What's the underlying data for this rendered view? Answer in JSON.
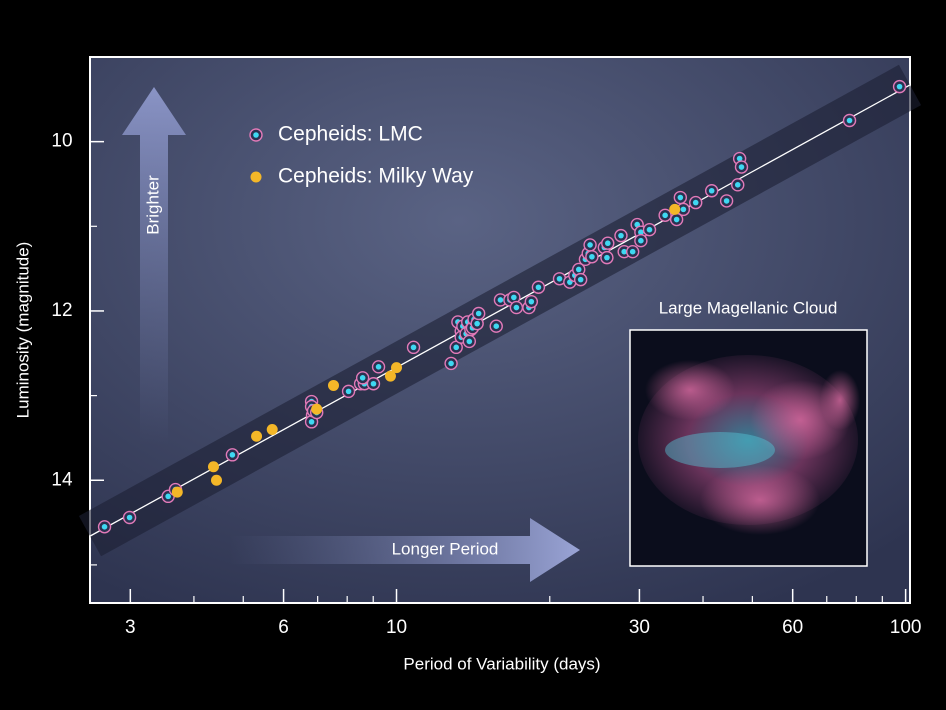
{
  "chart_data": {
    "type": "scatter",
    "x_label": "Period of Variability (days)",
    "y_label": "Luminosity (magnitude)",
    "xscale": "log",
    "y_inverted": true,
    "xlim": [
      2.5,
      102
    ],
    "ylim": [
      9,
      15.45
    ],
    "xticks": [
      3,
      6,
      10,
      30,
      60,
      100
    ],
    "xminorticks": [
      4,
      5,
      7,
      8,
      9,
      20,
      40,
      50,
      70,
      80,
      90
    ],
    "yticks": [
      10,
      12,
      14
    ],
    "yminorticks": [
      11,
      13,
      15
    ],
    "legend_position": "upper left",
    "annotations": [
      "Brighter",
      "Longer Period"
    ],
    "inset_title": "Large Magellanic Cloud",
    "trend": {
      "color": "#ffffff",
      "x": [
        2.5,
        102
      ],
      "values": [
        14.66,
        9.33
      ]
    },
    "series": [
      {
        "name": "Cepheids: LMC",
        "color": "#3fd8f2",
        "ring_color": "#e27ab8",
        "x": [
          2.67,
          2.99,
          3.56,
          3.68,
          4.76,
          6.81,
          6.81,
          6.84,
          6.81,
          6.87,
          6.97,
          8.05,
          8.5,
          8.65,
          8.58,
          9.01,
          9.22,
          10.8,
          12.8,
          13.1,
          13.2,
          13.4,
          13.4,
          13.5,
          13.7,
          13.8,
          14.0,
          14.1,
          14.2,
          14.4,
          13.9,
          14.5,
          15.7,
          16.0,
          16.7,
          17.0,
          17.2,
          18.2,
          18.4,
          19.0,
          20.9,
          21.9,
          22.4,
          22.8,
          23.0,
          23.5,
          23.8,
          24.0,
          24.2,
          25.6,
          25.9,
          26.0,
          27.6,
          28.0,
          29.1,
          29.7,
          30.2,
          30.2,
          31.4,
          33.7,
          35.5,
          36.1,
          36.6,
          38.7,
          41.6,
          44.5,
          46.8,
          47.2,
          47.6,
          77.6,
          97.3
        ],
        "values": [
          14.55,
          14.44,
          14.19,
          14.11,
          13.7,
          13.07,
          13.13,
          13.23,
          13.31,
          13.18,
          13.2,
          12.95,
          12.86,
          12.86,
          12.79,
          12.86,
          12.66,
          12.43,
          12.62,
          12.43,
          12.13,
          12.24,
          12.31,
          12.18,
          12.27,
          12.13,
          12.22,
          12.2,
          12.1,
          12.15,
          12.36,
          12.03,
          12.18,
          11.87,
          11.87,
          11.84,
          11.96,
          11.96,
          11.89,
          11.72,
          11.62,
          11.66,
          11.58,
          11.51,
          11.63,
          11.39,
          11.32,
          11.22,
          11.36,
          11.25,
          11.37,
          11.2,
          11.11,
          11.3,
          11.3,
          10.98,
          11.07,
          11.17,
          11.04,
          10.87,
          10.92,
          10.66,
          10.8,
          10.72,
          10.58,
          10.7,
          10.51,
          10.2,
          10.3,
          9.75,
          9.35
        ]
      },
      {
        "name": "Cepheids: Milky Way",
        "color": "#f4b728",
        "x": [
          3.71,
          4.37,
          4.43,
          5.31,
          5.7,
          6.97,
          7.52,
          9.73,
          10.0,
          35.2
        ],
        "values": [
          14.14,
          13.84,
          14.0,
          13.48,
          13.4,
          13.16,
          12.88,
          12.77,
          12.67,
          10.8
        ]
      }
    ]
  }
}
